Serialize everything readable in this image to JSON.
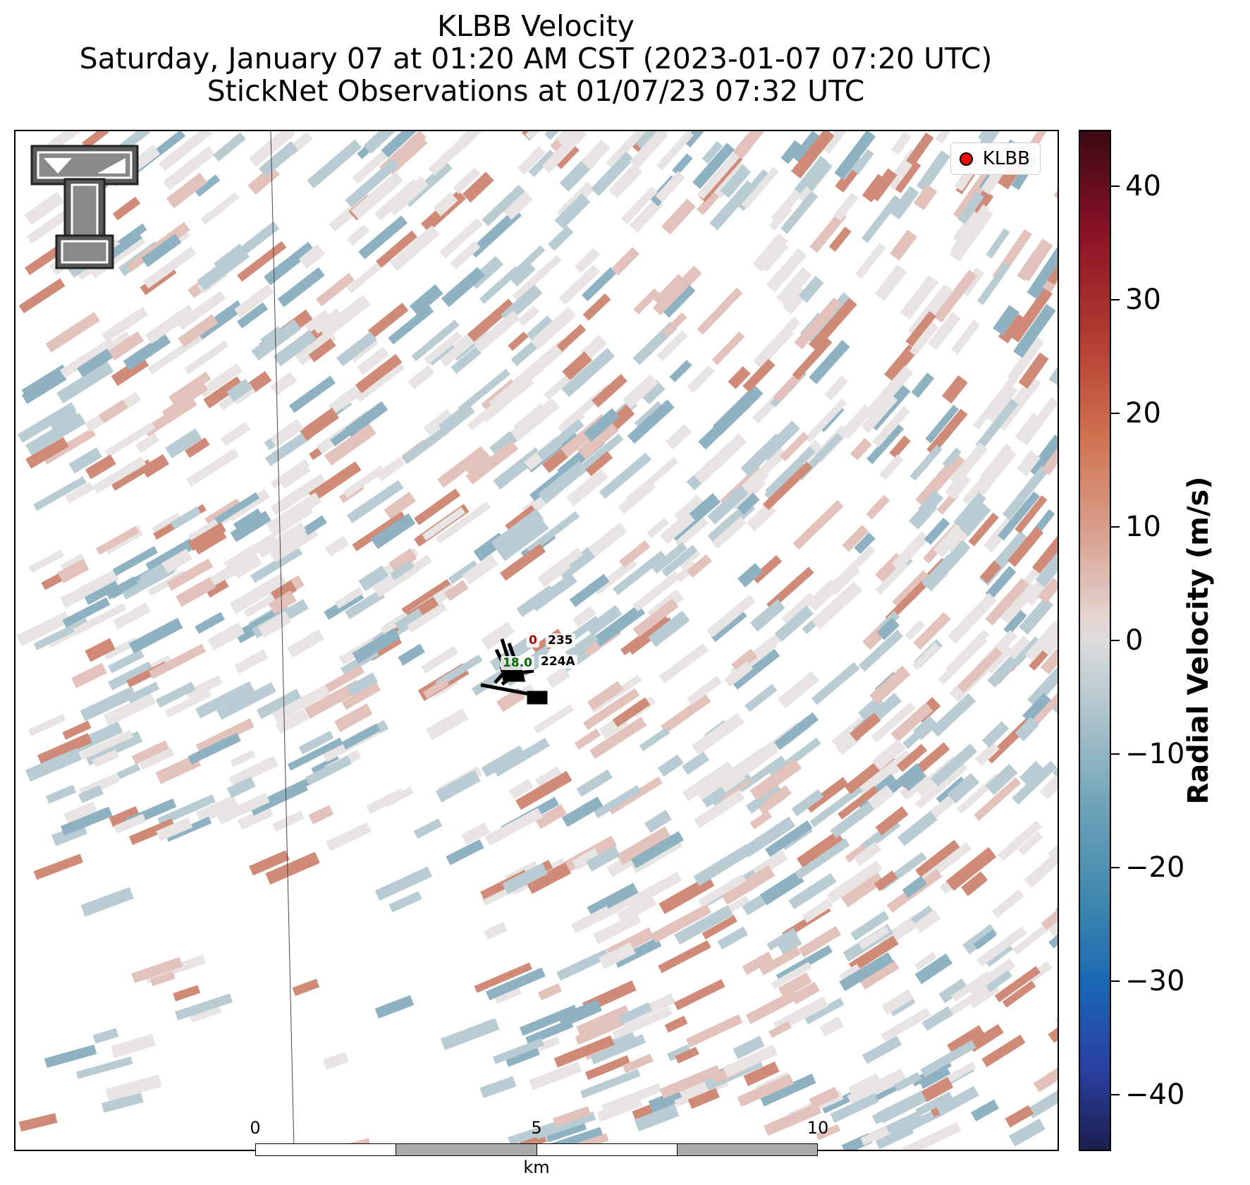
{
  "title": {
    "line1": "KLBB Velocity",
    "line2": "Saturday, January 07 at 01:20 AM CST (2023-01-07 07:20 UTC)",
    "line3": "StickNet Observations at 01/07/23 07:32 UTC"
  },
  "legend": {
    "label": "KLBB",
    "marker_color": "#ff0000"
  },
  "observations": [
    {
      "id": "235",
      "value": "0",
      "value_color": "#b00000"
    },
    {
      "id": "224A",
      "value": "18.0",
      "value_color": "#0a6a0a"
    }
  ],
  "scale_bar": {
    "ticks": [
      "0",
      "5",
      "10"
    ],
    "unit": "km",
    "fill_colors": [
      "#ffffff",
      "#aaaaaa",
      "#ffffff",
      "#aaaaaa"
    ]
  },
  "colorbar": {
    "label": "Radial Velocity (m/s)",
    "ticks": [
      "40",
      "30",
      "20",
      "10",
      "0",
      "−10",
      "−20",
      "−30",
      "−40"
    ],
    "tick_values": [
      40,
      30,
      20,
      10,
      0,
      -10,
      -20,
      -30,
      -40
    ],
    "range": [
      -45,
      45
    ]
  },
  "logo": {
    "name": "texas-tech-double-t-logo"
  },
  "palette": {
    "strong_red": "#cf8b78",
    "light_red": "#e2c2bb",
    "faint": "#e8e4e3",
    "light_blue": "#b9ccd4",
    "blue": "#8fb2c2"
  }
}
